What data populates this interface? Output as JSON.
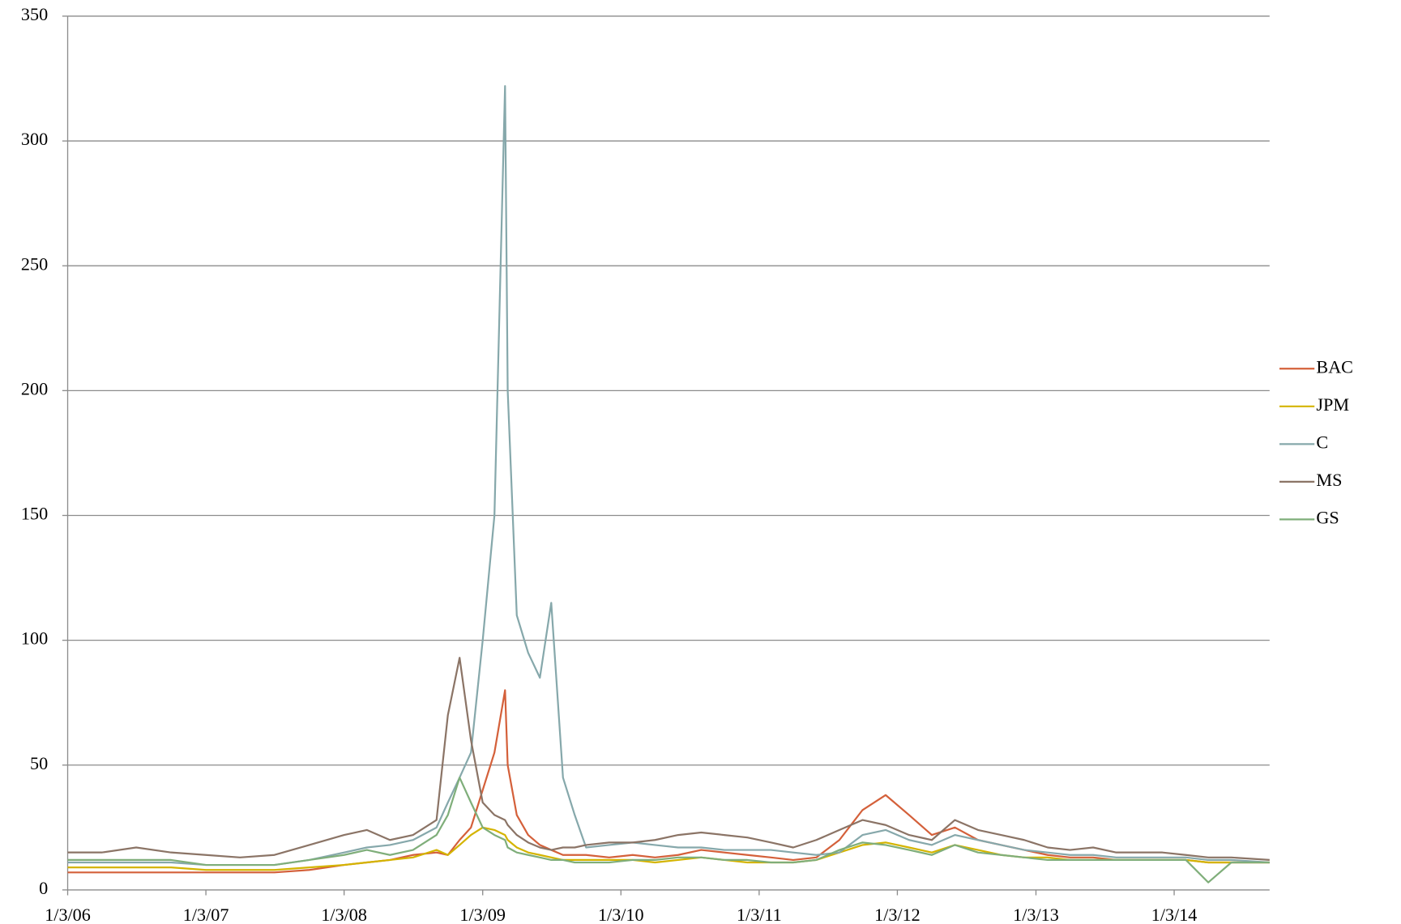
{
  "chart_data": {
    "type": "line",
    "x": [
      "1/3/06",
      "4/3/06",
      "7/3/06",
      "10/3/06",
      "1/3/07",
      "4/3/07",
      "7/3/07",
      "10/3/07",
      "1/3/08",
      "3/3/08",
      "5/3/08",
      "7/3/08",
      "9/3/08",
      "10/3/08",
      "11/3/08",
      "12/3/08",
      "1/3/09",
      "2/3/09",
      "3/3/09",
      "3/10/09",
      "4/3/09",
      "5/3/09",
      "6/3/09",
      "7/3/09",
      "8/3/09",
      "9/3/09",
      "10/3/09",
      "12/3/09",
      "2/3/10",
      "4/3/10",
      "6/3/10",
      "8/3/10",
      "10/3/10",
      "12/3/10",
      "2/3/11",
      "4/3/11",
      "6/3/11",
      "8/3/11",
      "10/3/11",
      "12/3/11",
      "2/3/12",
      "4/3/12",
      "6/3/12",
      "8/3/12",
      "10/3/12",
      "12/3/12",
      "2/3/13",
      "4/3/13",
      "6/3/13",
      "8/3/13",
      "10/3/13",
      "12/3/13",
      "2/3/14",
      "4/3/14",
      "6/3/14",
      "9/12/14"
    ],
    "series": [
      {
        "name": "BAC",
        "color": "#d4603a",
        "values": [
          7,
          7,
          7,
          7,
          7,
          7,
          7,
          8,
          10,
          11,
          12,
          14,
          15,
          14,
          20,
          25,
          40,
          55,
          80,
          50,
          30,
          22,
          18,
          16,
          14,
          14,
          14,
          13,
          14,
          13,
          14,
          16,
          15,
          14,
          13,
          12,
          13,
          20,
          32,
          38,
          30,
          22,
          25,
          20,
          18,
          16,
          14,
          13,
          13,
          12,
          12,
          12,
          12,
          11,
          11,
          11
        ]
      },
      {
        "name": "JPM",
        "color": "#d4b400",
        "values": [
          9,
          9,
          9,
          9,
          8,
          8,
          8,
          9,
          10,
          11,
          12,
          13,
          16,
          14,
          18,
          22,
          25,
          24,
          22,
          20,
          17,
          15,
          14,
          13,
          12,
          12,
          12,
          12,
          12,
          11,
          12,
          13,
          12,
          11,
          11,
          11,
          12,
          15,
          18,
          19,
          17,
          15,
          18,
          16,
          14,
          13,
          13,
          12,
          12,
          12,
          12,
          12,
          12,
          11,
          11,
          11
        ]
      },
      {
        "name": "C",
        "color": "#86a8ab",
        "values": [
          11,
          11,
          11,
          11,
          10,
          10,
          10,
          12,
          15,
          17,
          18,
          20,
          25,
          35,
          45,
          55,
          100,
          150,
          322,
          200,
          110,
          95,
          85,
          115,
          45,
          30,
          17,
          18,
          19,
          18,
          17,
          17,
          16,
          16,
          16,
          15,
          14,
          15,
          22,
          24,
          20,
          18,
          22,
          20,
          18,
          16,
          15,
          14,
          14,
          13,
          13,
          13,
          13,
          12,
          12,
          11
        ]
      },
      {
        "name": "MS",
        "color": "#8b7466",
        "values": [
          15,
          15,
          17,
          15,
          14,
          13,
          14,
          18,
          22,
          24,
          20,
          22,
          28,
          70,
          93,
          60,
          35,
          30,
          28,
          26,
          22,
          19,
          17,
          16,
          17,
          17,
          18,
          19,
          19,
          20,
          22,
          23,
          22,
          21,
          19,
          17,
          20,
          24,
          28,
          26,
          22,
          20,
          28,
          24,
          22,
          20,
          17,
          16,
          17,
          15,
          15,
          15,
          14,
          13,
          13,
          12
        ]
      },
      {
        "name": "GS",
        "color": "#7fae7a",
        "values": [
          12,
          12,
          12,
          12,
          10,
          10,
          10,
          12,
          14,
          16,
          14,
          16,
          22,
          30,
          45,
          35,
          25,
          22,
          20,
          17,
          15,
          14,
          13,
          12,
          12,
          11,
          11,
          11,
          12,
          12,
          13,
          13,
          12,
          12,
          11,
          11,
          12,
          16,
          19,
          18,
          16,
          14,
          18,
          15,
          14,
          13,
          12,
          12,
          12,
          12,
          12,
          12,
          12,
          3,
          11,
          11
        ]
      }
    ],
    "xlim": [
      "1/3/06",
      "9/12/14"
    ],
    "xticks": [
      "1/3/06",
      "1/3/07",
      "1/3/08",
      "1/3/09",
      "1/3/10",
      "1/3/11",
      "1/3/12",
      "1/3/13",
      "1/3/14"
    ],
    "ylim": [
      0,
      350
    ],
    "yticks": [
      0,
      50,
      100,
      150,
      200,
      250,
      300,
      350
    ],
    "grid": true,
    "legend": "right"
  }
}
